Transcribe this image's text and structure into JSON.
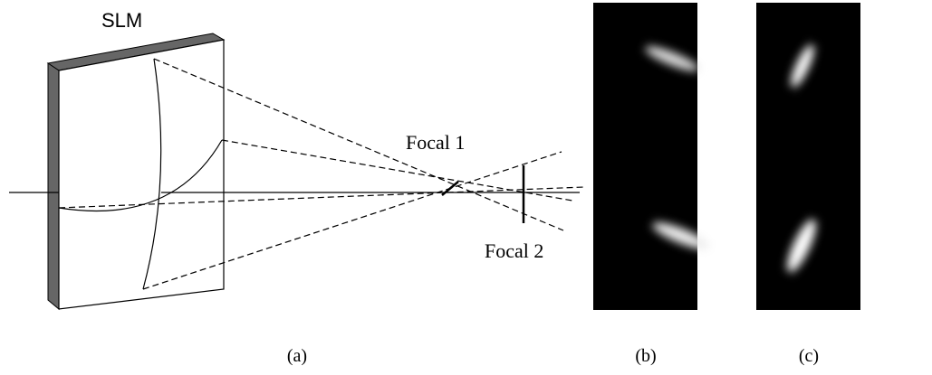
{
  "labels": {
    "slm": "SLM",
    "focal1": "Focal 1",
    "focal2": "Focal 2"
  },
  "captions": [
    "(a)",
    "(b)",
    "(c)"
  ]
}
